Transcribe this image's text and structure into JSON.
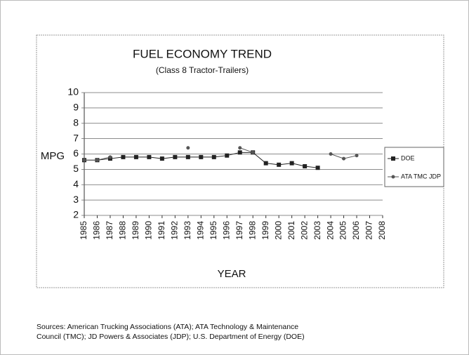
{
  "chart_data": {
    "type": "line",
    "title": "FUEL ECONOMY TREND",
    "subtitle": "(Class 8 Tractor-Trailers)",
    "y_label": "MPG",
    "x_label": "YEAR",
    "x": [
      1985,
      1986,
      1987,
      1988,
      1989,
      1990,
      1991,
      1992,
      1993,
      1994,
      1995,
      1996,
      1997,
      1998,
      1999,
      2000,
      2001,
      2002,
      2003,
      2004,
      2005,
      2006,
      2007,
      2008
    ],
    "xlim": [
      1985,
      2008
    ],
    "xticks": [
      1985,
      1986,
      1987,
      1988,
      1989,
      1990,
      1991,
      1992,
      1993,
      1994,
      1995,
      1996,
      1997,
      1998,
      1999,
      2000,
      2001,
      2002,
      2003,
      2004,
      2005,
      2006,
      2007,
      2008
    ],
    "ylim": [
      2,
      10
    ],
    "yticks": [
      2,
      3,
      4,
      5,
      6,
      7,
      8,
      9,
      10
    ],
    "grid": true,
    "legend": "right",
    "series": [
      {
        "name": "DOE",
        "color": "#222222",
        "marker": "square",
        "values": [
          5.6,
          5.6,
          5.7,
          5.8,
          5.8,
          5.8,
          5.7,
          5.8,
          5.8,
          5.8,
          5.8,
          5.9,
          6.1,
          6.1,
          5.4,
          5.3,
          5.4,
          5.2,
          5.1,
          null,
          null,
          null,
          null,
          null
        ]
      },
      {
        "name": "ATA TMC JDP",
        "color": "#555555",
        "marker": "circle",
        "values": [
          5.6,
          5.6,
          5.8,
          null,
          null,
          null,
          null,
          null,
          6.4,
          null,
          null,
          null,
          6.4,
          6.1,
          null,
          null,
          null,
          null,
          null,
          6.0,
          5.7,
          5.9,
          null,
          null
        ]
      }
    ]
  },
  "sources": [
    "Sources:  American Trucking Associations (ATA); ATA Technology & Maintenance",
    "Council (TMC); JD Powers & Associates (JDP); U.S. Department of Energy (DOE)"
  ]
}
